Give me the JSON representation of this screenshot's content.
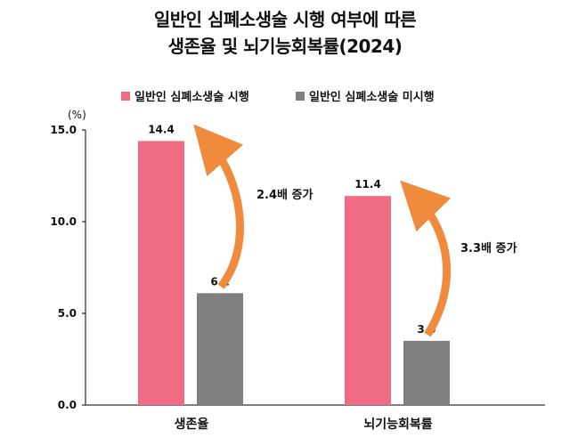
{
  "title_line1": "일반인 심폐소생술 시행 여부에 따른",
  "title_line2": "생존율 및 뇌기능회복률(2024)",
  "unit_label": "(%)",
  "colors": {
    "series1": "#f26b84",
    "series2": "#7f7f7f",
    "arrow": "#f08a3c",
    "axis": "#000000"
  },
  "chart_data": {
    "type": "bar",
    "categories": [
      "생존율",
      "뇌기능회복률"
    ],
    "series": [
      {
        "name": "일반인 심폐소생술 시행",
        "values": [
          14.4,
          11.4
        ]
      },
      {
        "name": "일반인 심폐소생술 미시행",
        "values": [
          6.1,
          3.5
        ]
      }
    ],
    "ylim": [
      0,
      15
    ],
    "yticks": [
      "0.0",
      "5.0",
      "10.0",
      "15.0"
    ],
    "data_labels": [
      [
        "14.4",
        "11.4"
      ],
      [
        "6.1",
        "3.5"
      ]
    ],
    "annotations": [
      "2.4배 증가",
      "3.3배 증가"
    ],
    "legend_position": "top",
    "grid": false
  }
}
